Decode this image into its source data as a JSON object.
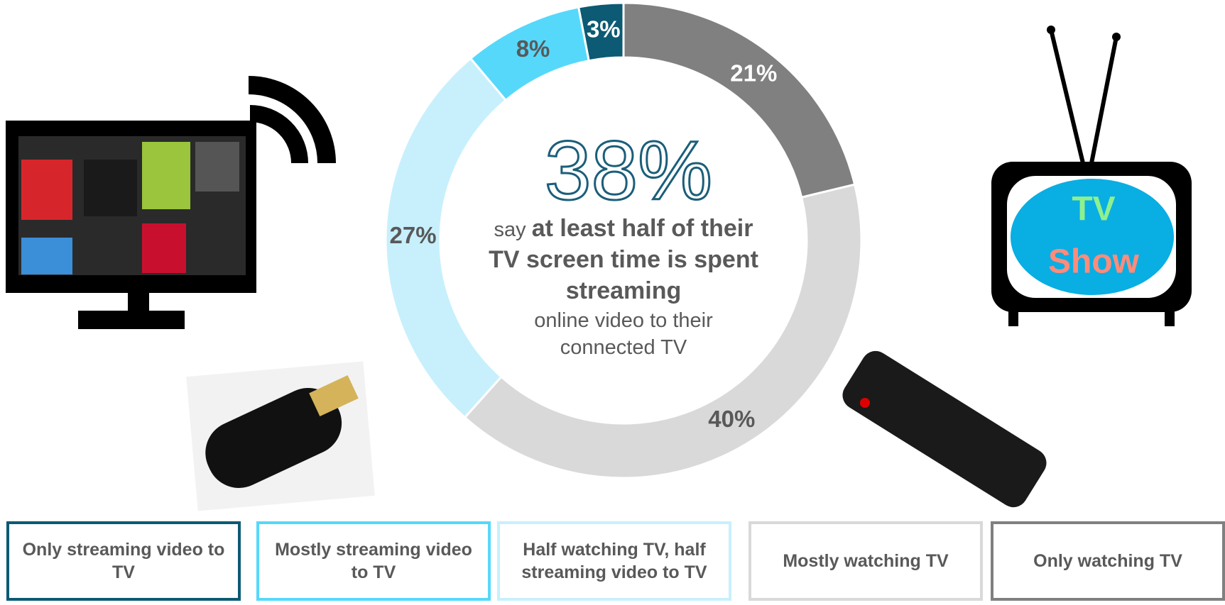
{
  "chart_data": {
    "type": "donut",
    "categories": [
      "Only streaming video to TV",
      "Mostly streaming video to TV",
      "Half watching TV, half streaming video to TV",
      "Mostly watching TV",
      "Only watching TV"
    ],
    "values": [
      3,
      8,
      27,
      40,
      21
    ],
    "value_labels": [
      "3%",
      "8%",
      "27%",
      "40%",
      "21%"
    ],
    "colors": [
      "#0c5a73",
      "#56d8fb",
      "#c7f0fc",
      "#d9d9d9",
      "#808080"
    ],
    "label_colors": [
      "#ffffff",
      "#595959",
      "#595959",
      "#595959",
      "#ffffff"
    ],
    "headline": "38%",
    "center_text": [
      {
        "text": "say ",
        "bold": false
      },
      {
        "text": "at least half of their TV screen time is spent streaming",
        "bold": true
      },
      {
        "text": "online video to their connected TV",
        "bold": false
      }
    ]
  },
  "icon_text": {
    "top": "TV",
    "bottom": "Show"
  }
}
